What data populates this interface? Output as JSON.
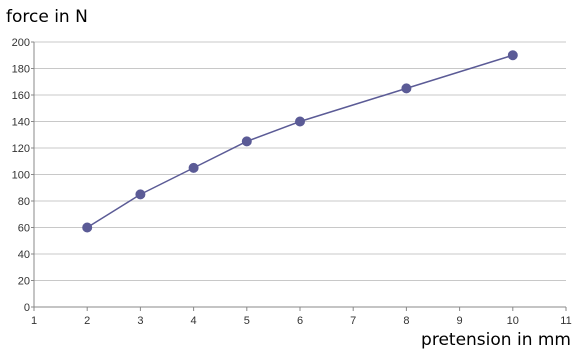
{
  "chart_data": {
    "type": "line",
    "title": "",
    "xlabel": "pretension in mm",
    "ylabel": "force in N",
    "xlim": [
      1,
      11
    ],
    "ylim": [
      0,
      200
    ],
    "x_ticks": [
      1,
      2,
      3,
      4,
      5,
      6,
      7,
      8,
      9,
      10,
      11
    ],
    "y_ticks": [
      0,
      20,
      40,
      60,
      80,
      100,
      120,
      140,
      160,
      180,
      200
    ],
    "grid": true,
    "legend": "none",
    "series": [
      {
        "color": "#5b5b96",
        "points": [
          {
            "x": 2,
            "y": 60
          },
          {
            "x": 3,
            "y": 85
          },
          {
            "x": 4,
            "y": 105
          },
          {
            "x": 5,
            "y": 125
          },
          {
            "x": 6,
            "y": 140
          },
          {
            "x": 8,
            "y": 165
          },
          {
            "x": 10,
            "y": 190
          }
        ]
      }
    ],
    "grid_color": "#c8c8c8",
    "axis_color": "#888888"
  }
}
